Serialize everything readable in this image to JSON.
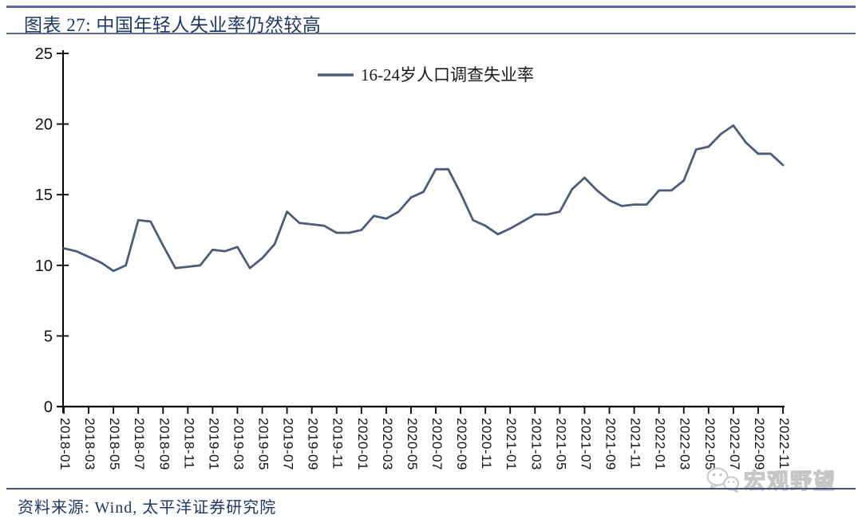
{
  "header": {
    "title": "图表 27: 中国年轻人失业率仍然较高"
  },
  "footer": {
    "source": "资料来源: Wind, 太平洋证券研究院"
  },
  "watermark": {
    "icon": "wechat-icon",
    "label": "宏观野望"
  },
  "colors": {
    "line": "#4d5c78",
    "axis": "#000000",
    "title_text": "#1f3864",
    "header_rule": "#5c6a9e",
    "footer_rule": "#44517c",
    "watermark_gray": "#c6c6c6"
  },
  "chart_data": {
    "type": "line",
    "title": "图表 27: 中国年轻人失业率仍然较高",
    "xlabel": "",
    "ylabel": "",
    "ylim": [
      0,
      25
    ],
    "yticks": [
      0,
      5,
      10,
      15,
      20,
      25
    ],
    "grid": false,
    "legend_position": "top-center",
    "xtick_label_every": 2,
    "x": [
      "2018-01",
      "2018-02",
      "2018-03",
      "2018-04",
      "2018-05",
      "2018-06",
      "2018-07",
      "2018-08",
      "2018-09",
      "2018-10",
      "2018-11",
      "2018-12",
      "2019-01",
      "2019-02",
      "2019-03",
      "2019-04",
      "2019-05",
      "2019-06",
      "2019-07",
      "2019-08",
      "2019-09",
      "2019-10",
      "2019-11",
      "2019-12",
      "2020-01",
      "2020-02",
      "2020-03",
      "2020-04",
      "2020-05",
      "2020-06",
      "2020-07",
      "2020-08",
      "2020-09",
      "2020-10",
      "2020-11",
      "2020-12",
      "2021-01",
      "2021-02",
      "2021-03",
      "2021-04",
      "2021-05",
      "2021-06",
      "2021-07",
      "2021-08",
      "2021-09",
      "2021-10",
      "2021-11",
      "2021-12",
      "2022-01",
      "2022-02",
      "2022-03",
      "2022-04",
      "2022-05",
      "2022-06",
      "2022-07",
      "2022-08",
      "2022-09",
      "2022-10",
      "2022-11"
    ],
    "series": [
      {
        "name": "16-24岁人口调查失业率",
        "color": "#4d5c78",
        "values": [
          11.2,
          11.0,
          10.6,
          10.2,
          9.6,
          10.0,
          13.2,
          13.1,
          11.4,
          9.8,
          9.9,
          10.0,
          11.1,
          11.0,
          11.3,
          9.8,
          10.5,
          11.5,
          13.8,
          13.0,
          12.9,
          12.8,
          12.3,
          12.3,
          12.5,
          13.5,
          13.3,
          13.8,
          14.8,
          15.2,
          16.8,
          16.8,
          15.1,
          13.2,
          12.8,
          12.2,
          12.6,
          13.1,
          13.6,
          13.6,
          13.8,
          15.4,
          16.2,
          15.3,
          14.6,
          14.2,
          14.3,
          14.3,
          15.3,
          15.3,
          16.0,
          18.2,
          18.4,
          19.3,
          19.9,
          18.7,
          17.9,
          17.9,
          17.1
        ]
      }
    ]
  }
}
